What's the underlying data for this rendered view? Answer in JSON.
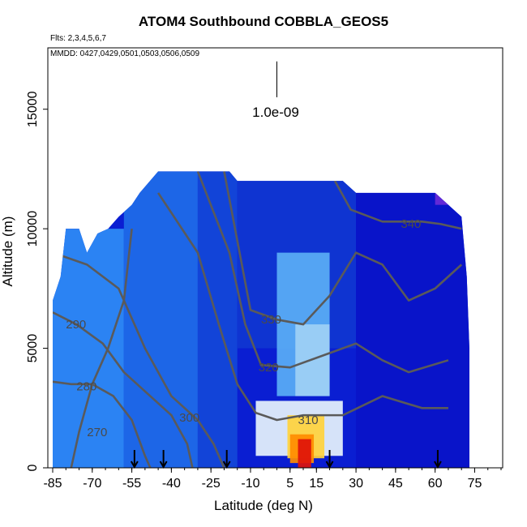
{
  "chart_data": {
    "type": "heatmap",
    "title": "ATOM4 Southbound COBBLA_GEOS5",
    "flights_label": "Flts: 2,3,4,5,6,7",
    "dates_label": "MMDD: 0427,0429,0501,0503,0506,0509",
    "xlabel": "Latitude (deg N)",
    "ylabel": "Altitude (m)",
    "xlim": [
      -85,
      85
    ],
    "ylim": [
      0,
      17500
    ],
    "xticks": [
      "-85",
      "-70",
      "-55",
      "-40",
      "-25",
      "-10",
      "5",
      "15",
      "30",
      "45",
      "60",
      "75"
    ],
    "xtick_values": [
      -85,
      -70,
      -55,
      -40,
      -25,
      -10,
      5,
      15,
      30,
      45,
      60,
      75
    ],
    "yticks": [
      "0",
      "5000",
      "10000",
      "15000"
    ],
    "ytick_values": [
      0,
      5000,
      10000,
      15000
    ],
    "scale_label": "1.0e-09",
    "scale_bar": {
      "x": 0,
      "y_top": 17000,
      "y_bottom": 15500
    },
    "flight_markers_lat": [
      -54,
      -43,
      -19,
      20,
      61
    ],
    "colors": {
      "background_field": "#0a1ed2",
      "ocean_blue": "#1a6ef0",
      "contour": "#5a5a5a"
    },
    "coverage": [
      [
        -85,
        0,
        7000
      ],
      [
        -82,
        0,
        8000
      ],
      [
        -80,
        0,
        10000
      ],
      [
        -75,
        0,
        10000
      ],
      [
        -72,
        0,
        9000
      ],
      [
        -68,
        0,
        9800
      ],
      [
        -64,
        0,
        10000
      ],
      [
        -60,
        0,
        10500
      ],
      [
        -55,
        0,
        11000
      ],
      [
        -52,
        0,
        11500
      ],
      [
        -45,
        0,
        12400
      ],
      [
        -40,
        0,
        12400
      ],
      [
        -30,
        0,
        12400
      ],
      [
        -18,
        0,
        12400
      ],
      [
        -15,
        0,
        12000
      ],
      [
        0,
        0,
        12000
      ],
      [
        20,
        0,
        12000
      ],
      [
        25,
        0,
        12000
      ],
      [
        30,
        0,
        11500
      ],
      [
        40,
        0,
        11500
      ],
      [
        60,
        0,
        11500
      ],
      [
        65,
        0,
        11000
      ],
      [
        70,
        0,
        10500
      ],
      [
        72,
        0,
        8000
      ],
      [
        73,
        0,
        5000
      ]
    ],
    "regions": [
      {
        "name": "southern-light-blue",
        "lat": [
          -85,
          -58
        ],
        "alt": [
          0,
          10000
        ],
        "color": "#2f8cf5"
      },
      {
        "name": "southern-mid-blue",
        "lat": [
          -58,
          -30
        ],
        "alt": [
          0,
          12400
        ],
        "color": "#1f6de8"
      },
      {
        "name": "subtropical-deep-blue",
        "lat": [
          -30,
          -15
        ],
        "alt": [
          0,
          12400
        ],
        "color": "#1448d8"
      },
      {
        "name": "tropical-upper-blue",
        "lat": [
          -15,
          30
        ],
        "alt": [
          5000,
          12000
        ],
        "color": "#1036d0"
      },
      {
        "name": "northern-deep-blue",
        "lat": [
          30,
          73
        ],
        "alt": [
          0,
          11500
        ],
        "color": "#0a14c8"
      },
      {
        "name": "tropical-light-column",
        "lat": [
          0,
          20
        ],
        "alt": [
          3000,
          9000
        ],
        "color": "#5aaef5"
      },
      {
        "name": "tropical-pale-column",
        "lat": [
          7,
          20
        ],
        "alt": [
          3000,
          6000
        ],
        "color": "#9fd0f5"
      },
      {
        "name": "tropical-white-plume",
        "lat": [
          -8,
          25
        ],
        "alt": [
          500,
          2800
        ],
        "color": "#e8f4fc"
      },
      {
        "name": "tropical-yellow-plume",
        "lat": [
          4,
          18
        ],
        "alt": [
          400,
          2200
        ],
        "color": "#ffd23c"
      },
      {
        "name": "tropical-orange-plume",
        "lat": [
          5,
          14
        ],
        "alt": [
          200,
          1400
        ],
        "color": "#ff8c00"
      },
      {
        "name": "tropical-red-core",
        "lat": [
          8,
          13
        ],
        "alt": [
          0,
          1200
        ],
        "color": "#e0140a"
      },
      {
        "name": "upper-purple-cap",
        "lat": [
          60,
          70
        ],
        "alt": [
          11000,
          11500
        ],
        "color": "#6a2bd8"
      }
    ],
    "contours": [
      {
        "label": "270",
        "label_at": [
          -72,
          1500
        ],
        "points": [
          [
            -78,
            0
          ],
          [
            -75,
            1500
          ],
          [
            -70,
            3500
          ],
          [
            -64,
            5000
          ],
          [
            -58,
            7000
          ],
          [
            -55,
            10000
          ]
        ]
      },
      {
        "label": "280",
        "label_at": [
          -76,
          3400
        ],
        "points": [
          [
            -85,
            3600
          ],
          [
            -78,
            3500
          ],
          [
            -70,
            3500
          ],
          [
            -62,
            3000
          ],
          [
            -55,
            2000
          ],
          [
            -50,
            500
          ],
          [
            -48,
            0
          ]
        ]
      },
      {
        "label": "290",
        "label_at": [
          -80,
          6000
        ],
        "points": [
          [
            -85,
            6500
          ],
          [
            -76,
            6000
          ],
          [
            -66,
            5200
          ],
          [
            -58,
            4000
          ],
          [
            -48,
            3000
          ],
          [
            -40,
            2200
          ],
          [
            -34,
            1000
          ],
          [
            -32,
            0
          ]
        ]
      },
      {
        "label": "300",
        "label_at": [
          -37,
          2100
        ],
        "points": [
          [
            -85,
            9000
          ],
          [
            -72,
            8500
          ],
          [
            -60,
            7500
          ],
          [
            -50,
            5000
          ],
          [
            -40,
            3000
          ],
          [
            -30,
            2000
          ],
          [
            -24,
            1000
          ],
          [
            -20,
            0
          ]
        ]
      },
      {
        "label": "310",
        "label_at": [
          8,
          2000
        ],
        "points": [
          [
            -45,
            11500
          ],
          [
            -30,
            9000
          ],
          [
            -22,
            6000
          ],
          [
            -15,
            3500
          ],
          [
            -8,
            2300
          ],
          [
            0,
            2000
          ],
          [
            10,
            2200
          ],
          [
            25,
            2200
          ],
          [
            40,
            3000
          ],
          [
            55,
            2500
          ],
          [
            65,
            2500
          ]
        ]
      },
      {
        "label": "320",
        "label_at": [
          -7,
          4200
        ],
        "points": [
          [
            -30,
            12400
          ],
          [
            -18,
            9000
          ],
          [
            -12,
            6000
          ],
          [
            -6,
            4300
          ],
          [
            5,
            4200
          ],
          [
            20,
            4800
          ],
          [
            30,
            5200
          ],
          [
            40,
            4500
          ],
          [
            50,
            4000
          ],
          [
            65,
            4500
          ]
        ]
      },
      {
        "label": "330",
        "label_at": [
          -6,
          6200
        ],
        "points": [
          [
            -20,
            12400
          ],
          [
            -15,
            9500
          ],
          [
            -10,
            6600
          ],
          [
            0,
            6200
          ],
          [
            10,
            6000
          ],
          [
            20,
            7200
          ],
          [
            30,
            9000
          ],
          [
            40,
            8500
          ],
          [
            50,
            7000
          ],
          [
            60,
            7500
          ],
          [
            70,
            8500
          ]
        ]
      },
      {
        "label": "340",
        "label_at": [
          47,
          10200
        ],
        "points": [
          [
            22,
            12000
          ],
          [
            28,
            10800
          ],
          [
            40,
            10300
          ],
          [
            55,
            10300
          ],
          [
            62,
            10200
          ],
          [
            70,
            10000
          ]
        ]
      }
    ]
  }
}
